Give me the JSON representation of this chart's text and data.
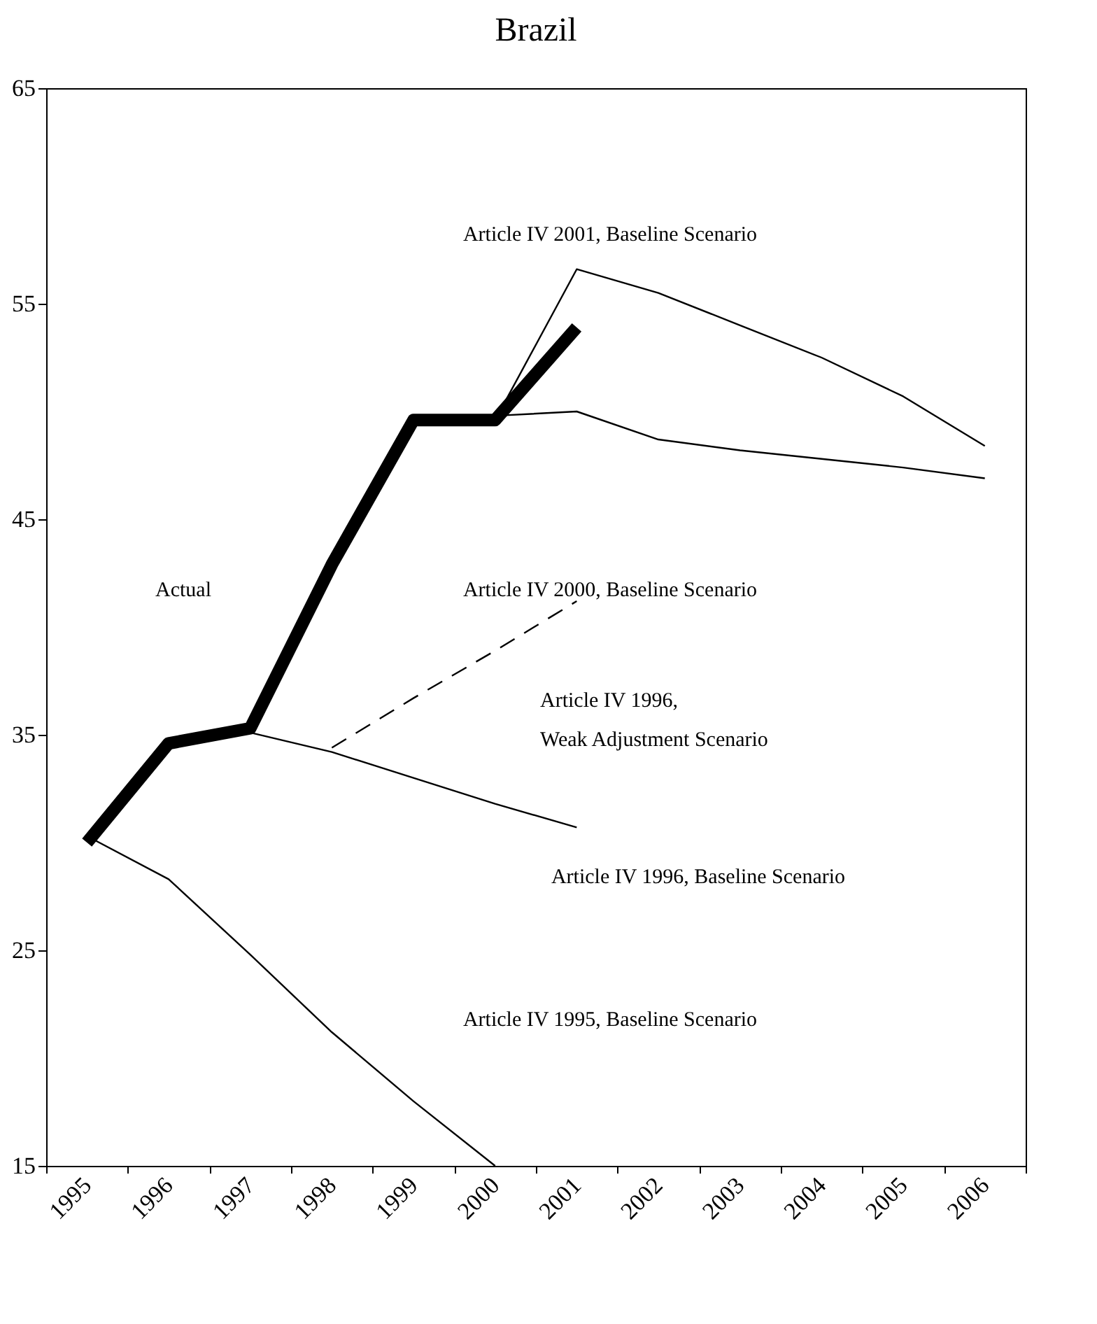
{
  "chart_data": {
    "type": "line",
    "title": "Brazil",
    "categories": [
      "1995",
      "1996",
      "1997",
      "1998",
      "1999",
      "2000",
      "2001",
      "2002",
      "2003",
      "2004",
      "2005",
      "2006"
    ],
    "ylim": [
      15,
      65
    ],
    "yticks": [
      15,
      25,
      35,
      45,
      55,
      65
    ],
    "grid": false,
    "marker": "none",
    "series": [
      {
        "color": "#000000",
        "line_style": "solid",
        "values": [
          30.0,
          34.6,
          35.3,
          42.9,
          49.6,
          49.6,
          53.9,
          null,
          null,
          null,
          null,
          null
        ]
      },
      {
        "color": "#000000",
        "line_style": "solid",
        "values": [
          null,
          null,
          null,
          null,
          null,
          49.6,
          56.6,
          55.5,
          54.0,
          52.5,
          50.7,
          48.4
        ]
      },
      {
        "color": "#000000",
        "line_style": "solid",
        "values": [
          null,
          null,
          null,
          null,
          null,
          49.8,
          50.0,
          48.7,
          48.2,
          47.8,
          47.4,
          46.9
        ]
      },
      {
        "color": "#000000",
        "line_style": "dashed",
        "values": [
          null,
          null,
          null,
          34.4,
          36.7,
          38.9,
          41.2,
          null,
          null,
          null,
          null,
          null
        ]
      },
      {
        "color": "#000000",
        "line_style": "solid",
        "values": [
          null,
          null,
          35.1,
          34.2,
          33.0,
          31.8,
          30.7,
          null,
          null,
          null,
          null,
          null
        ]
      },
      {
        "color": "#000000",
        "line_style": "solid",
        "values": [
          30.3,
          28.3,
          24.8,
          21.2,
          18.0,
          15.0,
          null,
          null,
          null,
          null,
          null,
          null
        ]
      }
    ],
    "annotations": [
      "Actual",
      "Article IV 2001, Baseline Scenario",
      "Article IV 2000, Baseline Scenario",
      "Article IV 1996,",
      "Weak Adjustment  Scenario",
      "Article IV 1996, Baseline Scenario",
      "Article IV 1995, Baseline Scenario"
    ]
  }
}
